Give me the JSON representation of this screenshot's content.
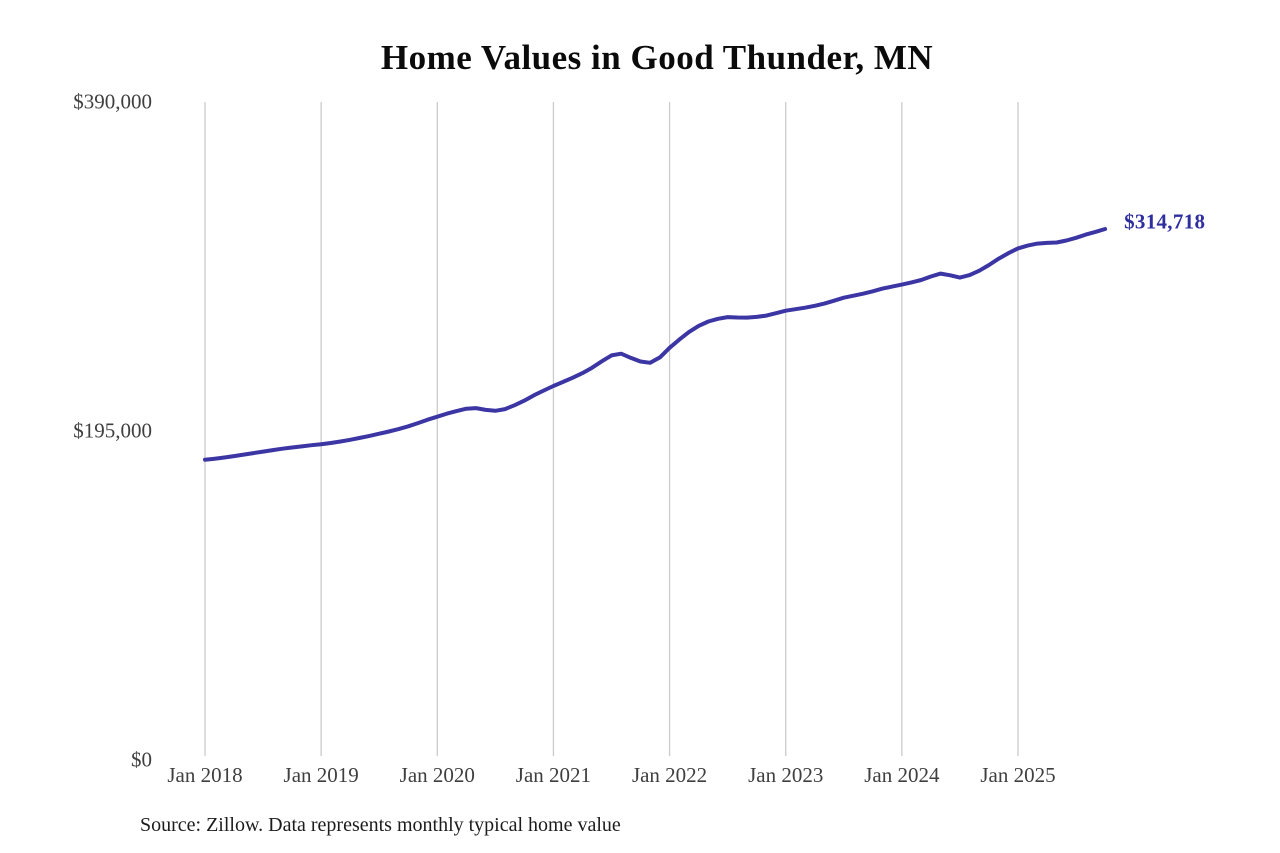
{
  "title": "Home Values in Good Thunder, MN",
  "source_note": "Source: Zillow. Data represents monthly typical home value",
  "end_label": "$314,718",
  "colors": {
    "line": "#3b36a3",
    "end_label": "#2e2e9f",
    "grid": "#cbcbcb",
    "tick_text": "#3f3f3f",
    "title_text": "#0b0b0b"
  },
  "chart_data": {
    "type": "line",
    "title": "Home Values in Good Thunder, MN",
    "xlabel": "",
    "ylabel": "",
    "grid": "vertical-only",
    "legend": "none",
    "ylim": [
      0,
      390000
    ],
    "y_ticks": [
      {
        "label": "$0",
        "value": 0
      },
      {
        "label": "$195,000",
        "value": 195000
      },
      {
        "label": "$390,000",
        "value": 390000
      }
    ],
    "x_tick_labels": [
      "Jan 2018",
      "Jan 2019",
      "Jan 2020",
      "Jan 2021",
      "Jan 2022",
      "Jan 2023",
      "Jan 2024",
      "Jan 2025"
    ],
    "months_per_tick": 12,
    "x_start_month": "2018-01",
    "x_end_month": "2025-10",
    "final_value": 314718,
    "final_value_label": "$314,718",
    "series": [
      {
        "name": "Monthly typical home value",
        "values": [
          178000,
          178600,
          179300,
          180100,
          181000,
          181900,
          182800,
          183700,
          184500,
          185200,
          185900,
          186600,
          187200,
          187900,
          188800,
          189800,
          190900,
          192100,
          193400,
          194700,
          196100,
          197800,
          199700,
          201700,
          203500,
          205300,
          206800,
          208200,
          208600,
          207500,
          207000,
          208000,
          210300,
          213000,
          216200,
          219000,
          221700,
          224100,
          226600,
          229300,
          232500,
          236300,
          239800,
          240800,
          238300,
          236200,
          235400,
          238600,
          244300,
          249200,
          253600,
          257300,
          259900,
          261500,
          262500,
          262300,
          262200,
          262600,
          263400,
          264800,
          266300,
          267200,
          268100,
          269200,
          270500,
          272200,
          274000,
          275200,
          276400,
          277800,
          279400,
          280600,
          281800,
          283100,
          284500,
          286600,
          288300,
          287300,
          285900,
          287400,
          290000,
          293400,
          297100,
          300400,
          303200,
          304900,
          306100,
          306500,
          306700,
          307900,
          309500,
          311400,
          313000,
          314718
        ]
      }
    ]
  }
}
